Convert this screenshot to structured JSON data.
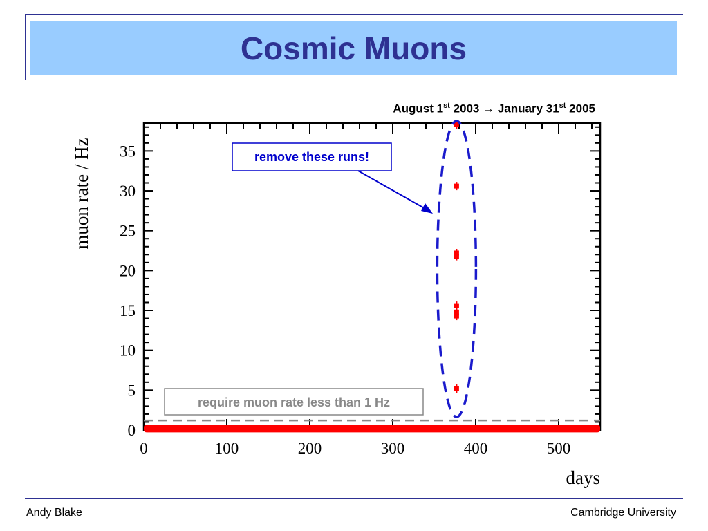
{
  "slide": {
    "title": "Cosmic Muons",
    "footer_left": "Andy Blake",
    "footer_right": "Cambridge University"
  },
  "chart_data": {
    "type": "scatter",
    "title": {
      "pre": "August 1",
      "sup1": "st",
      "mid": " 2003 → January 31",
      "sup2": "st",
      "post": " 2005"
    },
    "xlabel": "days",
    "ylabel": "muon rate / Hz",
    "xlim": [
      0,
      550
    ],
    "ylim": [
      0,
      38.5
    ],
    "xticks": [
      0,
      100,
      200,
      300,
      400,
      500
    ],
    "yticks": [
      0,
      5,
      10,
      15,
      20,
      25,
      30,
      35
    ],
    "grid": false,
    "colors": {
      "points": "#ff0000",
      "ellipse": "#1a1acc",
      "threshold": "#888888",
      "annotation": "#0000cc"
    },
    "series": [
      {
        "baseline_band": {
          "x": [
            0,
            550
          ],
          "y": [
            0.05,
            0.35
          ]
        },
        "outliers": [
          {
            "x": 377,
            "y": 38.3
          },
          {
            "x": 377,
            "y": 30.6
          },
          {
            "x": 377,
            "y": 22.2
          },
          {
            "x": 377,
            "y": 21.8
          },
          {
            "x": 377,
            "y": 15.6
          },
          {
            "x": 377,
            "y": 14.8
          },
          {
            "x": 377,
            "y": 14.3
          },
          {
            "x": 377,
            "y": 5.2
          }
        ]
      }
    ],
    "threshold_line": {
      "y": 1.2
    },
    "annotations": {
      "remove_box": "remove these runs!",
      "threshold_box": "require muon rate less than 1 Hz"
    }
  }
}
